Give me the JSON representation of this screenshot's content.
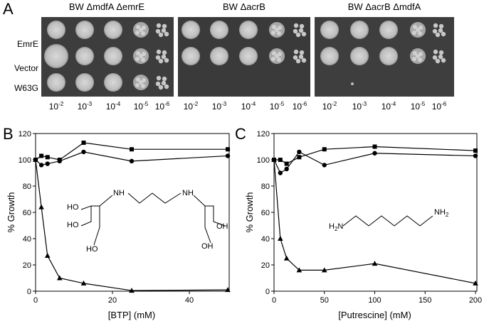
{
  "panel_a": {
    "label": "A",
    "plates": [
      "BW ΔmdfA ΔemrE",
      "BW ΔacrB",
      "BW ΔacrB ΔmdfA"
    ],
    "rows": [
      "EmrE",
      "Vector",
      "W63G"
    ],
    "dilutions": [
      {
        "base": "10",
        "exponent": "-2"
      },
      {
        "base": "10",
        "exponent": "-3"
      },
      {
        "base": "10",
        "exponent": "-4"
      },
      {
        "base": "10",
        "exponent": "-5"
      },
      {
        "base": "10",
        "exponent": "-6"
      }
    ]
  },
  "chart_data": [
    {
      "type": "line",
      "panel": "B",
      "xlabel": "[BTP] (mM)",
      "ylabel": "% Growth",
      "xlim": [
        0,
        50
      ],
      "ylim": [
        0,
        120
      ],
      "xticks": [
        0,
        20,
        40
      ],
      "yticks": [
        0,
        20,
        40,
        60,
        80,
        100,
        120
      ],
      "x": [
        0,
        1.5,
        3.1,
        6.25,
        12.5,
        25,
        50
      ],
      "series": [
        {
          "marker": "square",
          "color": "#000000",
          "values": [
            100,
            103,
            102,
            100,
            113,
            108,
            108
          ]
        },
        {
          "marker": "circle",
          "color": "#000000",
          "values": [
            100,
            96,
            97,
            99,
            106,
            99,
            103
          ]
        },
        {
          "marker": "triangle",
          "color": "#000000",
          "values": [
            100,
            64,
            27,
            10,
            6,
            0.5,
            1
          ]
        }
      ],
      "annotations": [
        {
          "parts": [
            "HO"
          ]
        },
        {
          "parts": [
            "NH"
          ]
        },
        {
          "parts": [
            "NH"
          ]
        },
        {
          "parts": [
            "HO"
          ]
        },
        {
          "parts": [
            "HO"
          ]
        },
        {
          "parts": [
            "OH"
          ]
        },
        {
          "parts": [
            "OH"
          ]
        }
      ]
    },
    {
      "type": "line",
      "panel": "C",
      "xlabel": "[Putrescine] (mM)",
      "ylabel": "% Growth",
      "xlim": [
        0,
        200
      ],
      "ylim": [
        0,
        120
      ],
      "xticks": [
        0,
        50,
        100,
        150,
        200
      ],
      "yticks": [
        0,
        20,
        40,
        60,
        80,
        100,
        120
      ],
      "x": [
        0,
        6.25,
        12.5,
        25,
        50,
        100,
        200
      ],
      "series": [
        {
          "marker": "square",
          "color": "#000000",
          "values": [
            100,
            100,
            97,
            102,
            108,
            110,
            107
          ]
        },
        {
          "marker": "circle",
          "color": "#000000",
          "values": [
            100,
            90,
            93,
            106,
            96,
            105,
            103
          ]
        },
        {
          "marker": "triangle",
          "color": "#000000",
          "values": [
            100,
            40,
            25,
            16,
            16,
            21,
            6
          ]
        }
      ],
      "annotations": [
        {
          "parts": [
            "H",
            "2",
            "N"
          ]
        },
        {
          "parts": [
            "NH",
            "2"
          ]
        }
      ]
    }
  ]
}
